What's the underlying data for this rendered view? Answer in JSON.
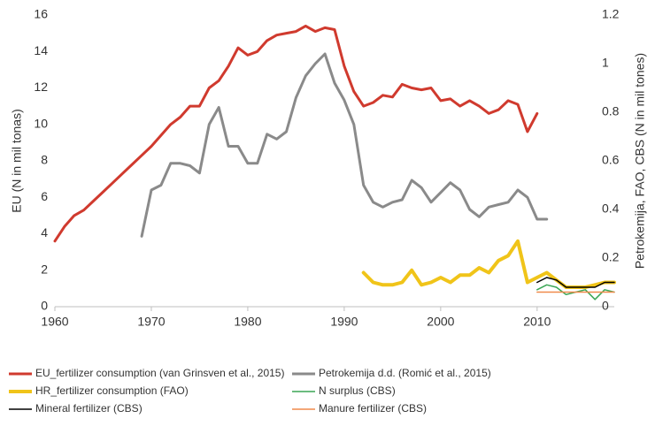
{
  "chart_data": {
    "type": "line",
    "y_label": "EU (N in mil tonas)",
    "y2_label": "Petrokemija, FAO, CBS (N in mil tones)",
    "xlim": [
      1960,
      2018
    ],
    "xticks": [
      1960,
      1970,
      1980,
      1990,
      2000,
      2010
    ],
    "ylim": [
      0,
      16
    ],
    "yticks": [
      0,
      2,
      4,
      6,
      8,
      10,
      12,
      14,
      16
    ],
    "y2lim": [
      0,
      1.2
    ],
    "y2ticks": [
      0,
      0.2,
      0.4,
      0.6,
      0.8,
      1,
      1.2
    ],
    "grid": false,
    "legend": "bottom",
    "series": [
      {
        "name": "EU_fertilizer consumption (van Grinsven et al., 2015)",
        "color": "#d03a2e",
        "x": [
          1960,
          1961,
          1962,
          1963,
          1964,
          1965,
          1966,
          1967,
          1968,
          1969,
          1970,
          1971,
          1972,
          1973,
          1974,
          1975,
          1976,
          1977,
          1978,
          1979,
          1980,
          1981,
          1982,
          1983,
          1984,
          1985,
          1986,
          1987,
          1988,
          1989,
          1990,
          1991,
          1992,
          1993,
          1994,
          1995,
          1996,
          1997,
          1998,
          1999,
          2000,
          2001,
          2002,
          2003,
          2004,
          2005,
          2006,
          2007,
          2008,
          2009,
          2010
        ],
        "values": [
          3.6,
          4.4,
          5.0,
          5.3,
          5.8,
          6.3,
          6.8,
          7.3,
          7.8,
          8.3,
          8.8,
          9.4,
          10.0,
          10.4,
          11.0,
          11.0,
          12.0,
          12.4,
          13.2,
          14.2,
          13.8,
          14.0,
          14.6,
          14.9,
          15.0,
          15.1,
          15.4,
          15.1,
          15.3,
          15.2,
          13.2,
          11.8,
          11.0,
          11.2,
          11.6,
          11.5,
          12.2,
          12.0,
          11.9,
          12.0,
          11.3,
          11.4,
          11.0,
          11.3,
          11.0,
          10.6,
          10.8,
          11.3,
          11.1,
          9.6,
          10.6
        ]
      },
      {
        "name": "Petrokemija d.d. (Romić et al., 2015)",
        "color": "#8a8a8a",
        "axis": "y2",
        "x": [
          1969,
          1970,
          1971,
          1972,
          1973,
          1974,
          1975,
          1976,
          1977,
          1978,
          1979,
          1980,
          1981,
          1982,
          1983,
          1984,
          1985,
          1986,
          1987,
          1988,
          1989,
          1990,
          1991,
          1992,
          1993,
          1994,
          1995,
          1996,
          1997,
          1998,
          1999,
          2000,
          2001,
          2002,
          2003,
          2004,
          2005,
          2006,
          2007,
          2008,
          2009,
          2010,
          2011
        ],
        "values": [
          0.29,
          0.48,
          0.5,
          0.59,
          0.59,
          0.58,
          0.55,
          0.75,
          0.82,
          0.66,
          0.66,
          0.59,
          0.59,
          0.71,
          0.69,
          0.72,
          0.86,
          0.95,
          1.0,
          1.04,
          0.92,
          0.85,
          0.75,
          0.5,
          0.43,
          0.41,
          0.43,
          0.44,
          0.52,
          0.49,
          0.43,
          0.47,
          0.51,
          0.48,
          0.4,
          0.37,
          0.41,
          0.42,
          0.43,
          0.48,
          0.45,
          0.36,
          0.36
        ]
      },
      {
        "name": "HR_fertilizer consumption (FAO)",
        "color": "#f0c419",
        "axis": "y2",
        "x": [
          1992,
          1993,
          1994,
          1995,
          1996,
          1997,
          1998,
          1999,
          2000,
          2001,
          2002,
          2003,
          2004,
          2005,
          2006,
          2007,
          2008,
          2009,
          2010,
          2011,
          2012,
          2013,
          2014,
          2015,
          2016,
          2017,
          2018
        ],
        "values": [
          0.14,
          0.1,
          0.09,
          0.09,
          0.1,
          0.15,
          0.09,
          0.1,
          0.12,
          0.1,
          0.13,
          0.13,
          0.16,
          0.14,
          0.19,
          0.21,
          0.27,
          0.1,
          0.12,
          0.14,
          0.11,
          0.08,
          0.08,
          0.08,
          0.09,
          0.1,
          0.1
        ]
      },
      {
        "name": "N surplus (CBS)",
        "color": "#3aa655",
        "axis": "y2",
        "x": [
          2010,
          2011,
          2012,
          2013,
          2014,
          2015,
          2016,
          2017,
          2018
        ],
        "values": [
          0.07,
          0.09,
          0.08,
          0.05,
          0.06,
          0.07,
          0.03,
          0.07,
          0.06
        ]
      },
      {
        "name": "Mineral fertilizer (CBS)",
        "color": "#000000",
        "axis": "y2",
        "x": [
          2010,
          2011,
          2012,
          2013,
          2014,
          2015,
          2016,
          2017,
          2018
        ],
        "values": [
          0.1,
          0.12,
          0.11,
          0.08,
          0.08,
          0.08,
          0.08,
          0.1,
          0.1
        ]
      },
      {
        "name": "Manure fertilizer (CBS)",
        "color": "#f08a4b",
        "axis": "y2",
        "x": [
          2010,
          2011,
          2012,
          2013,
          2014,
          2015,
          2016,
          2017,
          2018
        ],
        "values": [
          0.06,
          0.06,
          0.06,
          0.06,
          0.06,
          0.06,
          0.06,
          0.06,
          0.06
        ]
      }
    ]
  }
}
